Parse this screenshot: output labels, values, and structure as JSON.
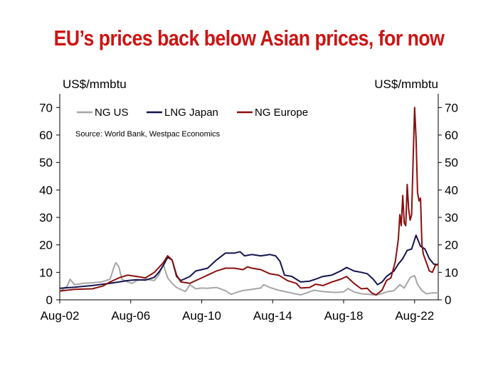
{
  "title": "EU’s prices back below Asian prices, for now",
  "chart_data": {
    "type": "line",
    "title": "EU’s prices back below Asian prices, for now",
    "ylabel_left": "US$/mmbtu",
    "ylabel_right": "US$/mmbtu",
    "source": "Source: World Bank, Westpac Economics",
    "ylim": [
      0,
      75
    ],
    "yticks": [
      0,
      10,
      20,
      30,
      40,
      50,
      60,
      70
    ],
    "xlim": [
      "2002-08",
      "2023-12"
    ],
    "xticks": [
      {
        "label": "Aug-02",
        "x": "2002-08"
      },
      {
        "label": "Aug-06",
        "x": "2006-08"
      },
      {
        "label": "Aug-10",
        "x": "2010-08"
      },
      {
        "label": "Aug-14",
        "x": "2014-08"
      },
      {
        "label": "Aug-18",
        "x": "2018-08"
      },
      {
        "label": "Aug-22",
        "x": "2022-08"
      }
    ],
    "grid": false,
    "legend_position": "top-left",
    "series": [
      {
        "name": "NG US",
        "color": "#a6a6a6",
        "points": [
          [
            "2002-08",
            3.0
          ],
          [
            "2003-01",
            5.0
          ],
          [
            "2003-03",
            7.5
          ],
          [
            "2003-06",
            5.5
          ],
          [
            "2003-12",
            6.0
          ],
          [
            "2004-06",
            6.2
          ],
          [
            "2004-12",
            6.5
          ],
          [
            "2005-06",
            7.5
          ],
          [
            "2005-09",
            12.5
          ],
          [
            "2005-10",
            13.5
          ],
          [
            "2005-12",
            12.0
          ],
          [
            "2006-02",
            7.5
          ],
          [
            "2006-06",
            6.5
          ],
          [
            "2006-09",
            6.0
          ],
          [
            "2006-12",
            7.0
          ],
          [
            "2007-06",
            7.5
          ],
          [
            "2007-12",
            7.0
          ],
          [
            "2008-03",
            9.0
          ],
          [
            "2008-06",
            12.8
          ],
          [
            "2008-09",
            8.0
          ],
          [
            "2008-12",
            6.0
          ],
          [
            "2009-03",
            4.5
          ],
          [
            "2009-09",
            3.0
          ],
          [
            "2009-12",
            5.5
          ],
          [
            "2010-04",
            4.0
          ],
          [
            "2010-08",
            4.3
          ],
          [
            "2010-12",
            4.2
          ],
          [
            "2011-06",
            4.5
          ],
          [
            "2011-12",
            3.3
          ],
          [
            "2012-04",
            2.0
          ],
          [
            "2012-08",
            2.8
          ],
          [
            "2012-12",
            3.4
          ],
          [
            "2013-06",
            3.8
          ],
          [
            "2013-12",
            4.3
          ],
          [
            "2014-02",
            5.5
          ],
          [
            "2014-06",
            4.5
          ],
          [
            "2014-12",
            3.5
          ],
          [
            "2015-06",
            2.8
          ],
          [
            "2015-12",
            2.1
          ],
          [
            "2016-03",
            1.8
          ],
          [
            "2016-09",
            2.9
          ],
          [
            "2016-12",
            3.5
          ],
          [
            "2017-06",
            3.0
          ],
          [
            "2017-12",
            2.8
          ],
          [
            "2018-03",
            2.7
          ],
          [
            "2018-08",
            2.9
          ],
          [
            "2018-11",
            4.1
          ],
          [
            "2019-03",
            2.9
          ],
          [
            "2019-08",
            2.2
          ],
          [
            "2020-01",
            2.0
          ],
          [
            "2020-06",
            1.7
          ],
          [
            "2020-10",
            2.3
          ],
          [
            "2021-02",
            3.0
          ],
          [
            "2021-06",
            3.3
          ],
          [
            "2021-10",
            5.5
          ],
          [
            "2022-01",
            4.3
          ],
          [
            "2022-05",
            8.1
          ],
          [
            "2022-08",
            8.8
          ],
          [
            "2022-10",
            5.7
          ],
          [
            "2023-01",
            3.3
          ],
          [
            "2023-04",
            2.2
          ],
          [
            "2023-08",
            2.5
          ],
          [
            "2023-12",
            2.5
          ]
        ]
      },
      {
        "name": "LNG Japan",
        "color": "#14144e",
        "points": [
          [
            "2002-08",
            4.2
          ],
          [
            "2003-06",
            4.6
          ],
          [
            "2004-06",
            5.2
          ],
          [
            "2005-06",
            6.0
          ],
          [
            "2005-12",
            6.5
          ],
          [
            "2006-06",
            7.0
          ],
          [
            "2006-12",
            7.3
          ],
          [
            "2007-06",
            7.2
          ],
          [
            "2007-12",
            8.2
          ],
          [
            "2008-03",
            10.0
          ],
          [
            "2008-06",
            12.5
          ],
          [
            "2008-09",
            15.5
          ],
          [
            "2008-12",
            14.5
          ],
          [
            "2009-03",
            8.5
          ],
          [
            "2009-06",
            7.0
          ],
          [
            "2009-12",
            8.5
          ],
          [
            "2010-04",
            10.5
          ],
          [
            "2010-08",
            11.0
          ],
          [
            "2010-12",
            11.5
          ],
          [
            "2011-06",
            14.5
          ],
          [
            "2011-12",
            17.0
          ],
          [
            "2012-06",
            17.0
          ],
          [
            "2012-10",
            17.5
          ],
          [
            "2013-01",
            16.0
          ],
          [
            "2013-06",
            16.5
          ],
          [
            "2013-12",
            16.0
          ],
          [
            "2014-06",
            16.5
          ],
          [
            "2014-10",
            16.0
          ],
          [
            "2015-01",
            14.0
          ],
          [
            "2015-04",
            9.0
          ],
          [
            "2015-09",
            8.5
          ],
          [
            "2016-03",
            6.5
          ],
          [
            "2016-09",
            6.8
          ],
          [
            "2017-01",
            7.5
          ],
          [
            "2017-06",
            8.5
          ],
          [
            "2017-12",
            9.0
          ],
          [
            "2018-06",
            10.5
          ],
          [
            "2018-10",
            11.8
          ],
          [
            "2019-03",
            10.5
          ],
          [
            "2019-08",
            10.0
          ],
          [
            "2019-12",
            9.5
          ],
          [
            "2020-04",
            7.5
          ],
          [
            "2020-07",
            5.5
          ],
          [
            "2020-10",
            6.5
          ],
          [
            "2021-01",
            8.5
          ],
          [
            "2021-06",
            10.5
          ],
          [
            "2021-09",
            13.0
          ],
          [
            "2021-12",
            15.0
          ],
          [
            "2022-03",
            18.0
          ],
          [
            "2022-06",
            18.5
          ],
          [
            "2022-09",
            23.5
          ],
          [
            "2022-12",
            19.5
          ],
          [
            "2023-03",
            18.5
          ],
          [
            "2023-06",
            15.0
          ],
          [
            "2023-09",
            13.0
          ],
          [
            "2023-12",
            12.8
          ]
        ]
      },
      {
        "name": "NG Europe",
        "color": "#8b0f0f",
        "points": [
          [
            "2002-08",
            3.2
          ],
          [
            "2003-06",
            3.8
          ],
          [
            "2004-06",
            4.0
          ],
          [
            "2005-01",
            5.0
          ],
          [
            "2005-06",
            6.5
          ],
          [
            "2005-12",
            8.0
          ],
          [
            "2006-06",
            9.0
          ],
          [
            "2006-12",
            8.5
          ],
          [
            "2007-06",
            8.0
          ],
          [
            "2007-12",
            10.0
          ],
          [
            "2008-06",
            13.5
          ],
          [
            "2008-09",
            16.0
          ],
          [
            "2008-12",
            14.5
          ],
          [
            "2009-03",
            9.0
          ],
          [
            "2009-06",
            6.5
          ],
          [
            "2009-12",
            6.0
          ],
          [
            "2010-04",
            7.0
          ],
          [
            "2010-08",
            8.0
          ],
          [
            "2010-12",
            9.0
          ],
          [
            "2011-06",
            10.5
          ],
          [
            "2011-12",
            11.5
          ],
          [
            "2012-06",
            11.5
          ],
          [
            "2012-12",
            11.0
          ],
          [
            "2013-03",
            12.0
          ],
          [
            "2013-06",
            11.5
          ],
          [
            "2013-12",
            11.0
          ],
          [
            "2014-06",
            9.5
          ],
          [
            "2014-12",
            9.0
          ],
          [
            "2015-06",
            7.0
          ],
          [
            "2015-12",
            6.0
          ],
          [
            "2016-03",
            4.3
          ],
          [
            "2016-09",
            4.5
          ],
          [
            "2017-01",
            5.7
          ],
          [
            "2017-06",
            5.2
          ],
          [
            "2017-12",
            6.5
          ],
          [
            "2018-06",
            7.5
          ],
          [
            "2018-10",
            8.5
          ],
          [
            "2019-03",
            6.0
          ],
          [
            "2019-08",
            4.0
          ],
          [
            "2019-12",
            4.2
          ],
          [
            "2020-03",
            2.5
          ],
          [
            "2020-06",
            1.8
          ],
          [
            "2020-10",
            3.5
          ],
          [
            "2021-01",
            7.0
          ],
          [
            "2021-04",
            8.0
          ],
          [
            "2021-07",
            14.0
          ],
          [
            "2021-09",
            22.0
          ],
          [
            "2021-10",
            31.0
          ],
          [
            "2021-11",
            27.0
          ],
          [
            "2021-12",
            38.0
          ],
          [
            "2022-01",
            28.0
          ],
          [
            "2022-02",
            27.0
          ],
          [
            "2022-03",
            42.0
          ],
          [
            "2022-04",
            33.0
          ],
          [
            "2022-05",
            29.0
          ],
          [
            "2022-06",
            31.0
          ],
          [
            "2022-07",
            51.0
          ],
          [
            "2022-08",
            70.0
          ],
          [
            "2022-09",
            59.0
          ],
          [
            "2022-10",
            39.0
          ],
          [
            "2022-11",
            36.0
          ],
          [
            "2022-12",
            37.0
          ],
          [
            "2023-01",
            20.0
          ],
          [
            "2023-02",
            16.5
          ],
          [
            "2023-04",
            13.5
          ],
          [
            "2023-06",
            10.5
          ],
          [
            "2023-08",
            10.0
          ],
          [
            "2023-10",
            12.5
          ],
          [
            "2023-12",
            13.0
          ]
        ]
      }
    ]
  }
}
